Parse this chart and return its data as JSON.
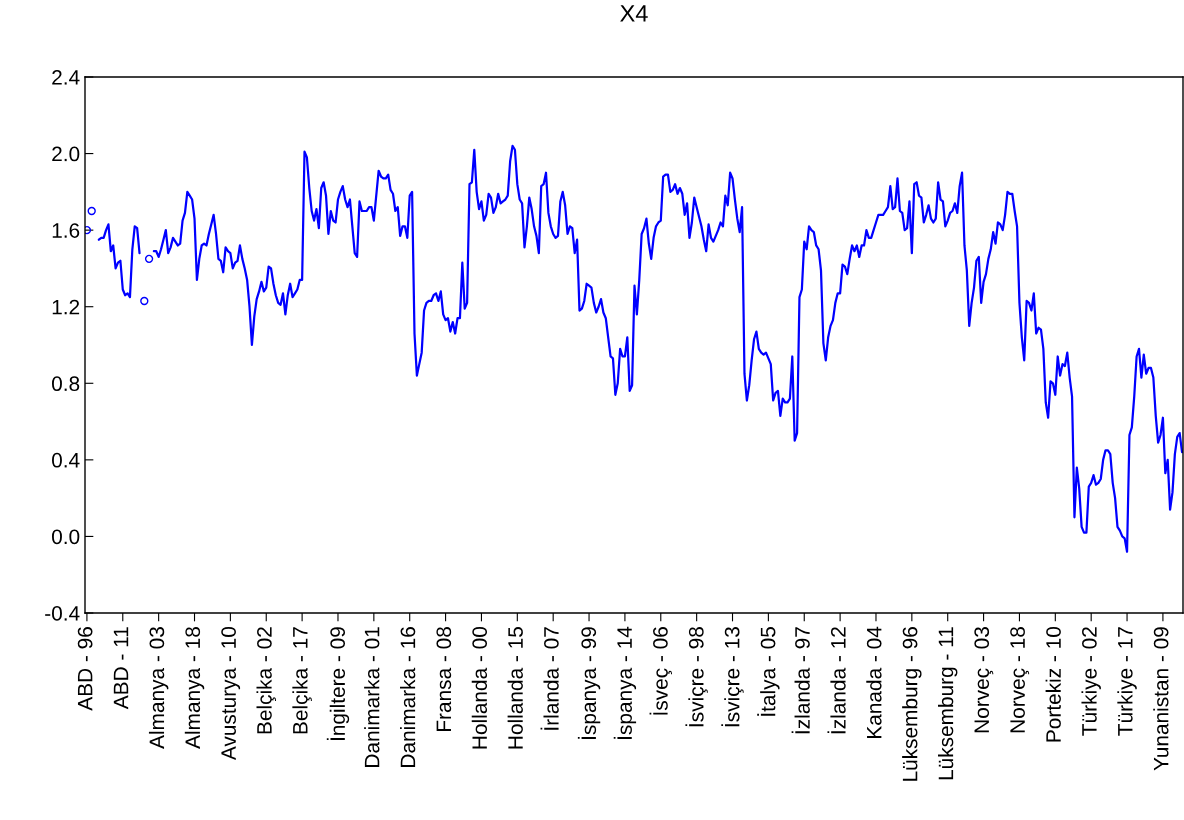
{
  "chart_data": {
    "type": "line",
    "title": "X4",
    "categories": [
      "ABD - 96",
      null,
      null,
      null,
      null,
      null,
      null,
      null,
      null,
      null,
      null,
      null,
      null,
      null,
      null,
      "ABD - 11",
      null,
      null,
      null,
      null,
      null,
      null,
      null,
      null,
      null,
      null,
      null,
      null,
      null,
      null,
      "Almanya - 03",
      null,
      null,
      null,
      null,
      null,
      null,
      null,
      null,
      null,
      null,
      null,
      null,
      null,
      null,
      "Almanya - 18",
      null,
      null,
      null,
      null,
      null,
      null,
      null,
      null,
      null,
      null,
      null,
      null,
      null,
      null,
      "Avusturya - 10",
      null,
      null,
      null,
      null,
      null,
      null,
      null,
      null,
      null,
      null,
      null,
      null,
      null,
      null,
      "Belçika - 02",
      null,
      null,
      null,
      null,
      null,
      null,
      null,
      null,
      null,
      null,
      null,
      null,
      null,
      null,
      "Belçika - 17",
      null,
      null,
      null,
      null,
      null,
      null,
      null,
      null,
      null,
      null,
      null,
      null,
      null,
      null,
      "İngiltere - 09",
      null,
      null,
      null,
      null,
      null,
      null,
      null,
      null,
      null,
      null,
      null,
      null,
      null,
      null,
      "Danimarka - 01",
      null,
      null,
      null,
      null,
      null,
      null,
      null,
      null,
      null,
      null,
      null,
      null,
      null,
      null,
      "Danimarka - 16",
      null,
      null,
      null,
      null,
      null,
      null,
      null,
      null,
      null,
      null,
      null,
      null,
      null,
      null,
      "Fransa - 08",
      null,
      null,
      null,
      null,
      null,
      null,
      null,
      null,
      null,
      null,
      null,
      null,
      null,
      null,
      "Hollanda - 00",
      null,
      null,
      null,
      null,
      null,
      null,
      null,
      null,
      null,
      null,
      null,
      null,
      null,
      null,
      "Hollanda - 15",
      null,
      null,
      null,
      null,
      null,
      null,
      null,
      null,
      null,
      null,
      null,
      null,
      null,
      null,
      "İrlanda - 07",
      null,
      null,
      null,
      null,
      null,
      null,
      null,
      null,
      null,
      null,
      null,
      null,
      null,
      null,
      "İspanya - 99",
      null,
      null,
      null,
      null,
      null,
      null,
      null,
      null,
      null,
      null,
      null,
      null,
      null,
      null,
      "İspanya - 14",
      null,
      null,
      null,
      null,
      null,
      null,
      null,
      null,
      null,
      null,
      null,
      null,
      null,
      null,
      "İsveç - 06",
      null,
      null,
      null,
      null,
      null,
      null,
      null,
      null,
      null,
      null,
      null,
      null,
      null,
      null,
      "İsviçre - 98",
      null,
      null,
      null,
      null,
      null,
      null,
      null,
      null,
      null,
      null,
      null,
      null,
      null,
      null,
      "İsviçre - 13",
      null,
      null,
      null,
      null,
      null,
      null,
      null,
      null,
      null,
      null,
      null,
      null,
      null,
      null,
      "İtalya - 05",
      null,
      null,
      null,
      null,
      null,
      null,
      null,
      null,
      null,
      null,
      null,
      null,
      null,
      null,
      "İzlanda - 97",
      null,
      null,
      null,
      null,
      null,
      null,
      null,
      null,
      null,
      null,
      null,
      null,
      null,
      null,
      "İzlanda - 12",
      null,
      null,
      null,
      null,
      null,
      null,
      null,
      null,
      null,
      null,
      null,
      null,
      null,
      null,
      "Kanada - 04",
      null,
      null,
      null,
      null,
      null,
      null,
      null,
      null,
      null,
      null,
      null,
      null,
      null,
      null,
      "Lüksemburg - 96",
      null,
      null,
      null,
      null,
      null,
      null,
      null,
      null,
      null,
      null,
      null,
      null,
      null,
      null,
      "Lüksemburg - 11",
      null,
      null,
      null,
      null,
      null,
      null,
      null,
      null,
      null,
      null,
      null,
      null,
      null,
      null,
      "Norveç - 03",
      null,
      null,
      null,
      null,
      null,
      null,
      null,
      null,
      null,
      null,
      null,
      null,
      null,
      null,
      "Norveç - 18",
      null,
      null,
      null,
      null,
      null,
      null,
      null,
      null,
      null,
      null,
      null,
      null,
      null,
      null,
      "Portekiz - 10",
      null,
      null,
      null,
      null,
      null,
      null,
      null,
      null,
      null,
      null,
      null,
      null,
      null,
      null,
      "Türkiye - 02",
      null,
      null,
      null,
      null,
      null,
      null,
      null,
      null,
      null,
      null,
      null,
      null,
      null,
      null,
      "Türkiye - 17",
      null,
      null,
      null,
      null,
      null,
      null,
      null,
      null,
      null,
      null,
      null,
      null,
      null,
      null,
      "Yunanistan - 09",
      null,
      null,
      null,
      null,
      null,
      null,
      null,
      null
    ],
    "series": [
      {
        "color": "#0000ff",
        "values": [
          1.6,
          null,
          1.7,
          null,
          null,
          1.55,
          1.56,
          1.56,
          1.6,
          1.63,
          1.49,
          1.52,
          1.4,
          1.43,
          1.44,
          1.29,
          1.26,
          1.27,
          1.25,
          1.5,
          1.62,
          1.61,
          1.48,
          null,
          1.23,
          null,
          1.45,
          null,
          1.49,
          1.49,
          1.46,
          1.5,
          1.55,
          1.6,
          1.48,
          1.51,
          1.56,
          1.54,
          1.52,
          1.53,
          1.65,
          1.69,
          1.8,
          1.78,
          1.76,
          1.66,
          1.34,
          1.45,
          1.52,
          1.53,
          1.52,
          1.58,
          1.63,
          1.68,
          1.58,
          1.45,
          1.44,
          1.38,
          1.51,
          1.49,
          1.48,
          1.4,
          1.43,
          1.44,
          1.52,
          1.45,
          1.4,
          1.34,
          1.2,
          1.0,
          1.15,
          1.24,
          1.28,
          1.33,
          1.28,
          1.3,
          1.41,
          1.4,
          1.32,
          1.26,
          1.22,
          1.21,
          1.27,
          1.16,
          1.26,
          1.32,
          1.25,
          1.27,
          1.29,
          1.34,
          1.34,
          2.01,
          1.98,
          1.82,
          1.7,
          1.65,
          1.71,
          1.61,
          1.82,
          1.85,
          1.78,
          1.58,
          1.7,
          1.65,
          1.64,
          1.76,
          1.8,
          1.83,
          1.76,
          1.72,
          1.76,
          1.62,
          1.48,
          1.46,
          1.75,
          1.7,
          1.7,
          1.7,
          1.72,
          1.72,
          1.65,
          1.78,
          1.91,
          1.88,
          1.87,
          1.87,
          1.89,
          1.81,
          1.79,
          1.7,
          1.72,
          1.57,
          1.62,
          1.62,
          1.56,
          1.78,
          1.8,
          1.06,
          0.84,
          0.9,
          0.96,
          1.18,
          1.22,
          1.23,
          1.23,
          1.26,
          1.27,
          1.23,
          1.28,
          1.16,
          1.13,
          1.14,
          1.07,
          1.12,
          1.06,
          1.14,
          1.14,
          1.43,
          1.19,
          1.22,
          1.84,
          1.85,
          2.02,
          1.8,
          1.71,
          1.75,
          1.65,
          1.68,
          1.79,
          1.77,
          1.69,
          1.72,
          1.79,
          1.74,
          1.75,
          1.76,
          1.78,
          1.96,
          2.04,
          2.02,
          1.84,
          1.76,
          1.74,
          1.51,
          1.62,
          1.77,
          1.71,
          1.62,
          1.57,
          1.48,
          1.83,
          1.84,
          1.9,
          1.69,
          1.62,
          1.58,
          1.56,
          1.57,
          1.75,
          1.8,
          1.73,
          1.58,
          1.62,
          1.61,
          1.48,
          1.55,
          1.18,
          1.19,
          1.23,
          1.32,
          1.31,
          1.3,
          1.22,
          1.17,
          1.2,
          1.24,
          1.17,
          1.14,
          1.04,
          0.94,
          0.93,
          0.74,
          0.8,
          0.98,
          0.94,
          0.94,
          1.04,
          0.76,
          0.79,
          1.31,
          1.16,
          1.34,
          1.58,
          1.61,
          1.66,
          1.53,
          1.45,
          1.56,
          1.62,
          1.64,
          1.65,
          1.88,
          1.89,
          1.89,
          1.8,
          1.81,
          1.84,
          1.79,
          1.82,
          1.79,
          1.68,
          1.74,
          1.56,
          1.64,
          1.77,
          1.72,
          1.67,
          1.62,
          1.55,
          1.49,
          1.63,
          1.56,
          1.54,
          1.57,
          1.6,
          1.64,
          1.62,
          1.78,
          1.73,
          1.9,
          1.87,
          1.76,
          1.66,
          1.59,
          1.72,
          0.85,
          0.71,
          0.79,
          0.92,
          1.03,
          1.07,
          0.98,
          0.96,
          0.95,
          0.96,
          0.93,
          0.9,
          0.71,
          0.75,
          0.76,
          0.63,
          0.72,
          0.7,
          0.7,
          0.72,
          0.94,
          0.5,
          0.54,
          1.25,
          1.29,
          1.54,
          1.5,
          1.62,
          1.6,
          1.59,
          1.52,
          1.5,
          1.39,
          1.01,
          0.92,
          1.04,
          1.1,
          1.13,
          1.22,
          1.27,
          1.27,
          1.42,
          1.41,
          1.37,
          1.45,
          1.52,
          1.49,
          1.52,
          1.46,
          1.52,
          1.52,
          1.6,
          1.56,
          1.56,
          1.6,
          1.64,
          1.68,
          1.68,
          1.68,
          1.7,
          1.72,
          1.83,
          1.71,
          1.72,
          1.87,
          1.7,
          1.69,
          1.6,
          1.61,
          1.75,
          1.48,
          1.84,
          1.85,
          1.78,
          1.77,
          1.64,
          1.68,
          1.73,
          1.66,
          1.64,
          1.66,
          1.85,
          1.76,
          1.75,
          1.62,
          1.65,
          1.69,
          1.7,
          1.74,
          1.69,
          1.83,
          1.9,
          1.52,
          1.39,
          1.1,
          1.22,
          1.3,
          1.44,
          1.46,
          1.22,
          1.33,
          1.37,
          1.45,
          1.5,
          1.59,
          1.53,
          1.64,
          1.63,
          1.6,
          1.68,
          1.8,
          1.79,
          1.79,
          1.7,
          1.62,
          1.22,
          1.04,
          0.92,
          1.23,
          1.22,
          1.18,
          1.27,
          1.06,
          1.09,
          1.08,
          0.98,
          0.7,
          0.62,
          0.81,
          0.8,
          0.74,
          0.94,
          0.84,
          0.9,
          0.89,
          0.96,
          0.83,
          0.73,
          0.1,
          0.36,
          0.25,
          0.05,
          0.02,
          0.02,
          0.26,
          0.28,
          0.32,
          0.27,
          0.28,
          0.3,
          0.4,
          0.45,
          0.45,
          0.43,
          0.28,
          0.2,
          0.05,
          0.03,
          0.0,
          -0.01,
          -0.08,
          0.53,
          0.57,
          0.73,
          0.94,
          0.98,
          0.83,
          0.95,
          0.85,
          0.88,
          0.88,
          0.83,
          0.63,
          0.49,
          0.53,
          0.62,
          0.33,
          0.4,
          0.14,
          0.23,
          0.43,
          0.52,
          0.54,
          0.44
        ]
      }
    ],
    "ylim": [
      -0.4,
      2.4
    ],
    "yticks": [
      {
        "value": -0.4,
        "label": "-0.4"
      },
      {
        "value": 0,
        "label": "0.0"
      },
      {
        "value": 0.4,
        "label": "0.4"
      },
      {
        "value": 0.8,
        "label": "0.8"
      },
      {
        "value": 1.2,
        "label": "1.2"
      },
      {
        "value": 1.6,
        "label": "1.6"
      },
      {
        "value": 2.0,
        "label": "2.0"
      },
      {
        "value": 2.4,
        "label": "2.4"
      }
    ],
    "grid": false,
    "legend": false
  }
}
